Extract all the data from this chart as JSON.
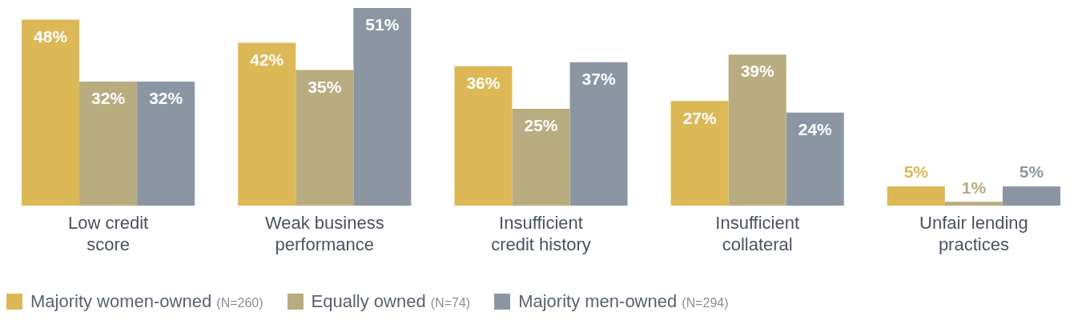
{
  "chart_data": {
    "type": "bar",
    "categories": [
      "Low credit score",
      "Weak business performance",
      "Insufficient credit history",
      "Insufficient collateral",
      "Unfair lending practices"
    ],
    "series": [
      {
        "name": "Majority women-owned (N=260)",
        "color": "#dcb856",
        "values": [
          48,
          42,
          36,
          27,
          5
        ],
        "value_labels": [
          "48%",
          "42%",
          "36%",
          "27%",
          "5%"
        ]
      },
      {
        "name": "Equally owned (N=74)",
        "color": "#b8ac80",
        "values": [
          32,
          35,
          25,
          39,
          1
        ],
        "value_labels": [
          "32%",
          "35%",
          "25%",
          "39%",
          "1%"
        ]
      },
      {
        "name": "Majority men-owned (N=294)",
        "color": "#8c96a3",
        "values": [
          32,
          51,
          37,
          24,
          5
        ],
        "value_labels": [
          "32%",
          "51%",
          "37%",
          "24%",
          "5%"
        ]
      }
    ],
    "legend": "bottom",
    "grid": false
  }
}
